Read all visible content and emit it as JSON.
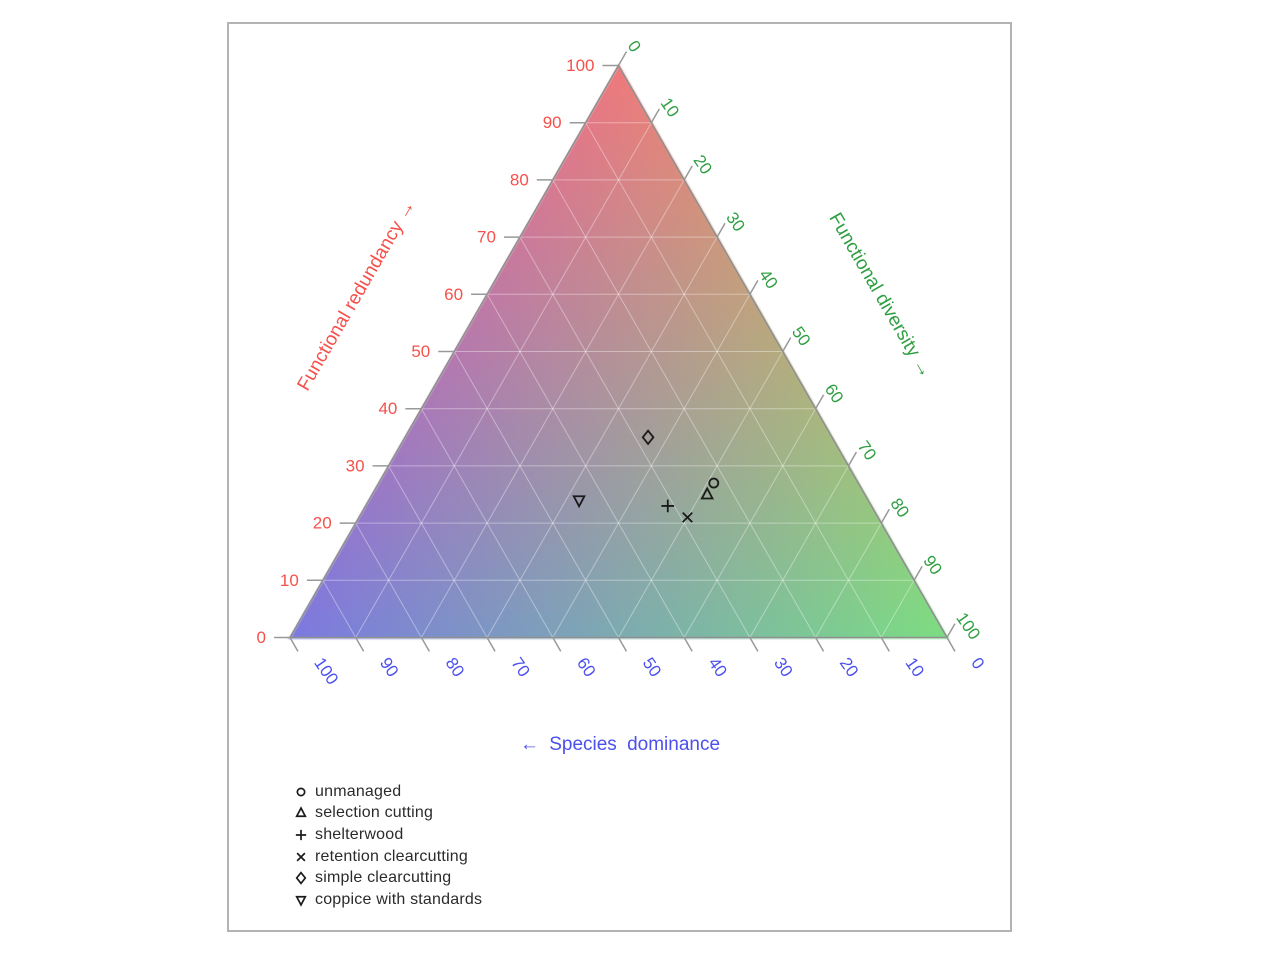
{
  "chart_data": {
    "type": "ternary",
    "axes": {
      "left": {
        "label": "Functional redundancy →",
        "color": "#f6504b",
        "ticks": [
          0,
          10,
          20,
          30,
          40,
          50,
          60,
          70,
          80,
          90,
          100
        ]
      },
      "right": {
        "label": "Functional diversity →",
        "color": "#2f9e41",
        "ticks": [
          0,
          10,
          20,
          30,
          40,
          50,
          60,
          70,
          80,
          90,
          100
        ]
      },
      "bottom": {
        "label": "← Species dominance",
        "color": "#4b50ee",
        "ticks": [
          100,
          90,
          80,
          70,
          60,
          50,
          40,
          30,
          20,
          10,
          0
        ]
      }
    },
    "corner_colors": {
      "top": "#ee797c",
      "left": "#7c79e0",
      "right": "#7cdd82"
    },
    "grid": {
      "step": 10,
      "color": "rgba(255,255,255,0.38)"
    },
    "tick_color": "#999999",
    "edge_color": "#8f8f8f",
    "marker_color": "#1b1b1b",
    "points": [
      {
        "label": "unmanaged",
        "symbol": "circle",
        "redundancy": 27,
        "dominance": 22,
        "diversity": 51
      },
      {
        "label": "selection cutting",
        "symbol": "triangle-up",
        "redundancy": 25,
        "dominance": 24,
        "diversity": 51
      },
      {
        "label": "shelterwood",
        "symbol": "plus",
        "redundancy": 23,
        "dominance": 31,
        "diversity": 46
      },
      {
        "label": "retention clearcutting",
        "symbol": "x",
        "redundancy": 21,
        "dominance": 29,
        "diversity": 50
      },
      {
        "label": "simple clearcutting",
        "symbol": "diamond",
        "redundancy": 35,
        "dominance": 28,
        "diversity": 37
      },
      {
        "label": "coppice with standards",
        "symbol": "triangle-down",
        "redundancy": 24,
        "dominance": 44,
        "diversity": 32
      }
    ],
    "legend": [
      {
        "symbol": "circle",
        "label": "unmanaged"
      },
      {
        "symbol": "triangle-up",
        "label": "selection cutting"
      },
      {
        "symbol": "plus",
        "label": "shelterwood"
      },
      {
        "symbol": "x",
        "label": "retention clearcutting"
      },
      {
        "symbol": "diamond",
        "label": "simple clearcutting"
      },
      {
        "symbol": "triangle-down",
        "label": "coppice with standards"
      }
    ]
  }
}
